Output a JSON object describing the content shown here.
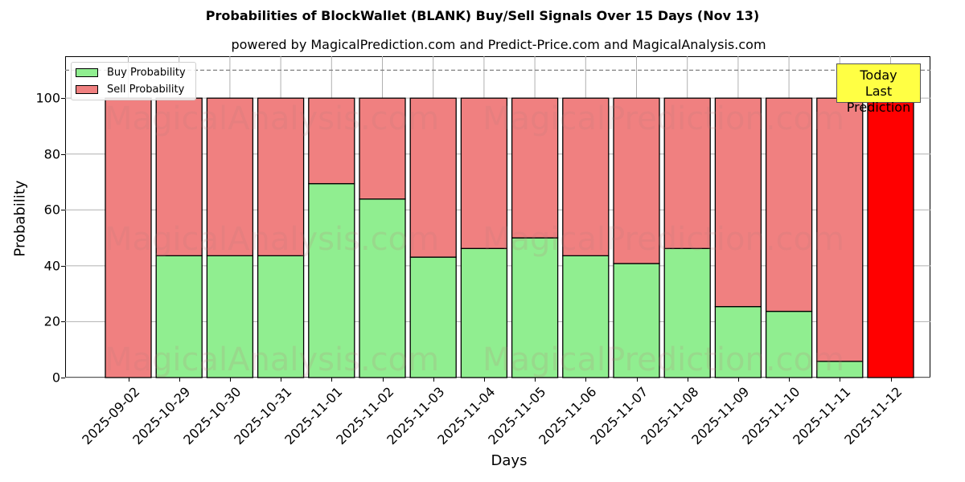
{
  "chart_data": {
    "type": "bar",
    "stacked": true,
    "title": "Probabilities of BlockWallet (BLANK) Buy/Sell Signals Over 15 Days (Nov 13)",
    "subtitle": "powered by MagicalPrediction.com and Predict-Price.com and MagicalAnalysis.com",
    "xlabel": "Days",
    "ylabel": "Probability",
    "ylim": [
      0,
      115
    ],
    "yticks": [
      0,
      20,
      40,
      60,
      80,
      100
    ],
    "grid": true,
    "legend_position": "upper left",
    "reference_line": {
      "y": 110,
      "style": "dashed",
      "color": "#808080"
    },
    "categories": [
      "2025-09-02",
      "2025-10-29",
      "2025-10-30",
      "2025-10-31",
      "2025-11-01",
      "2025-11-02",
      "2025-11-03",
      "2025-11-04",
      "2025-11-05",
      "2025-11-06",
      "2025-11-07",
      "2025-11-08",
      "2025-11-09",
      "2025-11-10",
      "2025-11-11",
      "2025-11-12"
    ],
    "series": [
      {
        "name": "Buy Probability",
        "color": "#90ee90",
        "values": [
          0,
          43.6,
          43.6,
          43.6,
          69.4,
          63.9,
          43.1,
          46.2,
          50.0,
          43.6,
          40.8,
          46.2,
          25.4,
          23.7,
          5.8,
          0
        ]
      },
      {
        "name": "Sell Probability",
        "color": "#f08080",
        "values": [
          100,
          56.4,
          56.4,
          56.4,
          30.6,
          36.1,
          56.9,
          53.8,
          50.0,
          56.4,
          59.2,
          53.8,
          74.6,
          76.3,
          94.2,
          100
        ]
      }
    ],
    "highlight": {
      "category": "2025-11-12",
      "color": "#ff0000",
      "annotation": "Today\nLast Prediction"
    }
  },
  "labels": {
    "title": "Probabilities of BlockWallet (BLANK) Buy/Sell Signals Over 15 Days (Nov 13)",
    "subtitle": "powered by MagicalPrediction.com and Predict-Price.com and MagicalAnalysis.com",
    "xlabel": "Days",
    "ylabel": "Probability",
    "legend_buy": "Buy Probability",
    "legend_sell": "Sell Probability",
    "today_line1": "Today",
    "today_line2": "Last Prediction",
    "watermark1": "MagicalAnalysis.com",
    "watermark2": "MagicalPrediction.com"
  }
}
